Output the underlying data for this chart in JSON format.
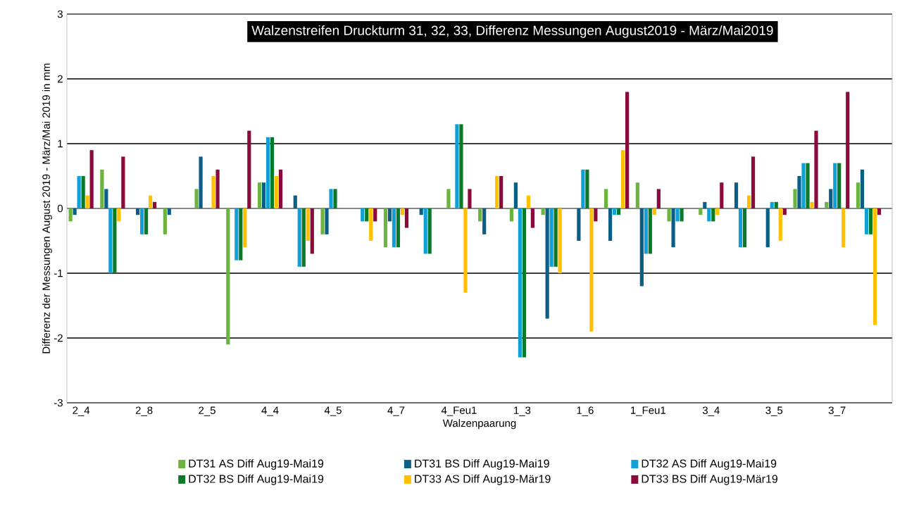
{
  "chart_data": {
    "type": "bar",
    "title": "Walzenstreifen Druckturm 31, 32, 33, Differenz Messungen August2019 - März/Mai2019",
    "xlabel": "Walzenpaarung",
    "ylabel": "Differenz der Messungen August 2019 - März/Mai 2019 in mm",
    "categories": [
      "2_4",
      null,
      "2_8",
      null,
      "2_5",
      null,
      "4_4",
      null,
      "4_5",
      null,
      "4_7",
      null,
      "4_Feu1",
      null,
      "1_3",
      null,
      "1_6",
      null,
      "1_Feu1",
      null,
      "3_4",
      null,
      "3_5",
      null,
      "3_7",
      null
    ],
    "series": [
      {
        "name": "DT31 AS Diff Aug19-Mai19",
        "color": "#6db33f",
        "values": [
          -0.2,
          0.6,
          0,
          -0.4,
          0.3,
          -2.1,
          0.4,
          0,
          -0.4,
          0,
          -0.6,
          0,
          0.3,
          -0.2,
          -0.2,
          -0.1,
          0,
          0.3,
          0.4,
          -0.2,
          -0.1,
          0,
          0,
          0.3,
          0.1,
          0.4
        ]
      },
      {
        "name": "DT31 BS Diff Aug19-Mai19",
        "color": "#0b5f86",
        "values": [
          -0.1,
          0.3,
          -0.1,
          -0.1,
          0.8,
          0,
          0.4,
          0.2,
          -0.4,
          0,
          -0.2,
          -0.1,
          0,
          -0.4,
          0.4,
          -1.7,
          -0.5,
          -0.5,
          -1.2,
          -0.6,
          0.1,
          0.4,
          -0.6,
          0.5,
          0.3,
          0.6
        ]
      },
      {
        "name": "DT32 AS Diff Aug19-Mai19",
        "color": "#0fa0d8",
        "values": [
          0.5,
          -1.0,
          -0.4,
          0,
          0,
          -0.8,
          1.1,
          -0.9,
          0.3,
          -0.2,
          -0.6,
          -0.7,
          1.3,
          0,
          -2.3,
          -0.9,
          0.6,
          -0.1,
          -0.7,
          -0.2,
          -0.2,
          -0.6,
          0.1,
          0.7,
          0.7,
          -0.4
        ]
      },
      {
        "name": "DT32 BS Diff Aug19-Mai19",
        "color": "#0a7a2a",
        "values": [
          0.5,
          -1.0,
          -0.4,
          0,
          0,
          -0.8,
          1.1,
          -0.9,
          0.3,
          -0.2,
          -0.6,
          -0.7,
          1.3,
          0,
          -2.3,
          -0.9,
          0.6,
          -0.1,
          -0.7,
          -0.2,
          -0.2,
          -0.6,
          0.1,
          0.7,
          0.7,
          -0.4
        ]
      },
      {
        "name": "DT33 AS Diff Aug19-Mär19",
        "color": "#ffc000",
        "values": [
          0.2,
          -0.2,
          0.2,
          0,
          0.5,
          -0.6,
          0.5,
          -0.5,
          0,
          -0.5,
          -0.1,
          0,
          -1.3,
          0.5,
          0.2,
          -1.0,
          -1.9,
          0.9,
          -0.1,
          0,
          -0.1,
          0.2,
          -0.5,
          0.1,
          -0.6,
          -1.8
        ]
      },
      {
        "name": "DT33 BS Diff Aug19-Mär19",
        "color": "#8b0a3c",
        "values": [
          0.9,
          0.8,
          0.1,
          0,
          0.6,
          1.2,
          0.6,
          -0.7,
          0,
          -0.2,
          -0.3,
          0,
          0.3,
          0.5,
          -0.3,
          0,
          -0.2,
          1.8,
          0.3,
          0,
          0.4,
          0.8,
          -0.1,
          1.2,
          1.8,
          -0.1
        ]
      }
    ],
    "ylim": [
      -3,
      3
    ],
    "yticks": [
      -3,
      -2,
      -1,
      0,
      1,
      2,
      3
    ],
    "grid": "y",
    "legend": "bottom"
  }
}
